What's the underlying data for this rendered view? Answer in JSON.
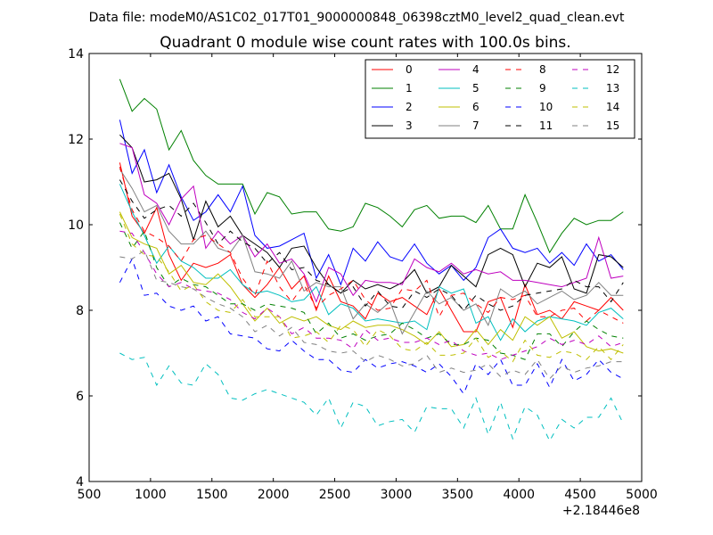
{
  "chart_data": {
    "type": "line",
    "suptitle": "Data file: modeM0/AS1C02_017T01_9000000848_06398cztM0_level2_quad_clean.evt",
    "title": "Quadrant 0 module wise count rates with 100.0s bins.",
    "xlabel": "",
    "ylabel": "",
    "x_offset_label": "+2.18446e8",
    "xlim": [
      500,
      5000
    ],
    "ylim": [
      4,
      14
    ],
    "xticks": [
      500,
      1000,
      1500,
      2000,
      2500,
      3000,
      3500,
      4000,
      4500,
      5000
    ],
    "xtick_labels": [
      "500",
      "1000",
      "1500",
      "2000",
      "2500",
      "3000",
      "3500",
      "4000",
      "4500",
      "5000"
    ],
    "yticks": [
      4,
      6,
      8,
      10,
      12,
      14
    ],
    "ytick_labels": [
      "4",
      "6",
      "8",
      "10",
      "12",
      "14"
    ],
    "legend_position": "top-right",
    "x": [
      750,
      850,
      950,
      1050,
      1150,
      1250,
      1350,
      1450,
      1550,
      1650,
      1750,
      1850,
      1950,
      2050,
      2150,
      2250,
      2350,
      2450,
      2550,
      2650,
      2750,
      2850,
      2950,
      3050,
      3150,
      3250,
      3350,
      3450,
      3550,
      3650,
      3750,
      3850,
      3950,
      4050,
      4150,
      4250,
      4350,
      4450,
      4550,
      4650,
      4750,
      4850
    ],
    "series": [
      {
        "name": "0",
        "color": "#ff0000",
        "dash": "solid",
        "values": [
          11.45,
          10.2,
          9.8,
          10.4,
          9.3,
          8.7,
          9.1,
          9.0,
          9.1,
          9.3,
          8.6,
          8.3,
          8.6,
          9.0,
          8.5,
          8.8,
          8.0,
          8.8,
          8.2,
          8.1,
          7.8,
          8.4,
          8.2,
          8.3,
          8.1,
          7.9,
          8.5,
          8.0,
          7.5,
          7.5,
          8.2,
          8.3,
          7.6,
          8.6,
          7.9,
          8.0,
          7.8,
          8.2,
          8.1,
          8.0,
          8.3,
          8.0
        ]
      },
      {
        "name": "1",
        "color": "#008000",
        "dash": "solid",
        "values": [
          13.4,
          12.65,
          12.95,
          12.7,
          11.75,
          12.2,
          11.5,
          11.15,
          10.95,
          10.95,
          10.95,
          10.25,
          10.75,
          10.65,
          10.25,
          10.3,
          10.3,
          9.9,
          9.85,
          9.95,
          10.5,
          10.4,
          10.2,
          9.95,
          10.35,
          10.45,
          10.15,
          10.2,
          10.2,
          10.05,
          10.45,
          9.9,
          9.9,
          10.7,
          10.05,
          9.35,
          9.8,
          10.15,
          10.0,
          10.1,
          10.1,
          10.3
        ]
      },
      {
        "name": "2",
        "color": "#0000ff",
        "dash": "solid",
        "values": [
          12.45,
          11.2,
          11.75,
          10.75,
          11.4,
          10.65,
          10.1,
          10.3,
          10.7,
          10.3,
          10.9,
          9.75,
          9.45,
          9.5,
          9.65,
          9.8,
          8.75,
          9.3,
          8.6,
          9.45,
          9.15,
          9.6,
          9.25,
          9.15,
          9.55,
          9.1,
          8.85,
          9.05,
          8.7,
          9.0,
          9.7,
          9.9,
          9.45,
          9.35,
          9.45,
          9.1,
          9.35,
          9.05,
          9.55,
          9.15,
          9.3,
          8.95
        ]
      },
      {
        "name": "3",
        "color": "#000000",
        "dash": "solid",
        "values": [
          12.1,
          11.8,
          11.0,
          11.05,
          11.2,
          10.6,
          9.65,
          10.55,
          9.95,
          10.2,
          9.75,
          9.55,
          9.35,
          9.0,
          9.45,
          9.5,
          9.0,
          8.6,
          8.4,
          8.7,
          8.5,
          8.6,
          8.5,
          8.65,
          8.95,
          8.4,
          8.55,
          9.05,
          8.8,
          8.55,
          9.3,
          9.45,
          9.3,
          8.55,
          9.1,
          9.0,
          9.25,
          8.5,
          8.4,
          9.3,
          9.25,
          9.0
        ]
      },
      {
        "name": "4",
        "color": "#bf00bf",
        "dash": "solid",
        "values": [
          11.9,
          11.8,
          10.7,
          10.5,
          10.0,
          10.6,
          10.9,
          9.45,
          9.85,
          9.55,
          9.75,
          9.25,
          9.55,
          9.1,
          9.2,
          8.85,
          8.2,
          9.0,
          8.85,
          8.35,
          8.7,
          8.65,
          8.65,
          8.6,
          9.2,
          9.0,
          8.9,
          9.1,
          8.85,
          8.95,
          8.85,
          8.9,
          8.7,
          8.7,
          8.65,
          8.6,
          8.55,
          8.65,
          8.75,
          9.7,
          8.75,
          8.8
        ]
      },
      {
        "name": "5",
        "color": "#00bfbf",
        "dash": "solid",
        "values": [
          10.95,
          10.3,
          9.75,
          9.1,
          9.5,
          9.15,
          9.0,
          8.75,
          8.75,
          8.95,
          8.6,
          8.4,
          8.45,
          8.35,
          8.2,
          8.25,
          8.55,
          7.9,
          8.15,
          8.05,
          7.75,
          7.8,
          7.75,
          7.7,
          7.75,
          7.55,
          8.55,
          8.4,
          8.5,
          7.7,
          7.85,
          7.3,
          7.8,
          7.5,
          7.75,
          7.85,
          7.8,
          7.75,
          7.65,
          7.95,
          8.05,
          7.8
        ]
      },
      {
        "name": "6",
        "color": "#bfbf00",
        "dash": "solid",
        "values": [
          10.3,
          9.7,
          9.55,
          9.45,
          8.85,
          9.05,
          8.65,
          8.6,
          8.85,
          8.55,
          8.15,
          7.75,
          8.05,
          7.7,
          7.85,
          7.75,
          7.85,
          7.65,
          7.55,
          7.75,
          7.6,
          7.65,
          7.65,
          7.55,
          7.4,
          7.2,
          7.5,
          7.15,
          7.2,
          7.55,
          7.2,
          7.55,
          7.3,
          7.85,
          7.65,
          7.85,
          7.35,
          7.5,
          7.15,
          7.05,
          7.1,
          7.0
        ]
      },
      {
        "name": "7",
        "color": "#808080",
        "dash": "solid",
        "values": [
          11.3,
          10.85,
          10.3,
          10.45,
          9.85,
          9.55,
          9.55,
          9.85,
          9.45,
          9.35,
          9.75,
          8.9,
          8.85,
          8.75,
          9.15,
          8.45,
          8.65,
          8.55,
          8.55,
          7.8,
          8.15,
          7.95,
          8.2,
          7.45,
          7.95,
          8.45,
          8.15,
          8.3,
          8.0,
          8.15,
          7.65,
          8.5,
          8.3,
          8.45,
          8.15,
          8.3,
          8.45,
          8.25,
          8.35,
          8.65,
          8.35,
          8.35
        ]
      },
      {
        "name": "8",
        "color": "#ff0000",
        "dash": "dashed",
        "values": [
          11.35,
          10.35,
          9.85,
          9.7,
          9.5,
          9.15,
          9.65,
          9.75,
          9.55,
          9.35,
          8.75,
          8.35,
          9.15,
          8.55,
          8.2,
          8.6,
          8.05,
          8.35,
          8.5,
          8.7,
          8.25,
          8.0,
          8.05,
          8.5,
          8.45,
          8.7,
          7.85,
          8.35,
          8.4,
          8.15,
          7.95,
          8.3,
          8.25,
          8.35,
          7.85,
          7.85,
          8.0,
          8.05,
          7.75,
          8.0,
          7.85,
          7.7
        ]
      },
      {
        "name": "9",
        "color": "#008000",
        "dash": "dashed",
        "values": [
          10.05,
          9.45,
          9.85,
          9.0,
          8.55,
          8.75,
          8.6,
          8.55,
          8.35,
          8.15,
          8.15,
          8.0,
          8.15,
          8.1,
          8.05,
          7.95,
          7.45,
          7.7,
          7.35,
          7.45,
          7.3,
          7.4,
          7.45,
          7.7,
          7.55,
          7.35,
          7.45,
          7.2,
          7.2,
          7.35,
          7.3,
          7.0,
          6.95,
          6.85,
          7.45,
          7.45,
          7.15,
          7.5,
          7.75,
          7.55,
          7.4,
          7.35
        ]
      },
      {
        "name": "10",
        "color": "#0000ff",
        "dash": "dashed",
        "values": [
          8.65,
          9.2,
          8.35,
          8.4,
          8.1,
          8.0,
          8.1,
          7.75,
          7.85,
          7.45,
          7.4,
          7.35,
          7.1,
          7.05,
          7.3,
          7.05,
          6.85,
          6.85,
          6.6,
          6.55,
          6.85,
          6.65,
          6.75,
          6.8,
          6.7,
          6.55,
          6.75,
          6.45,
          6.05,
          6.75,
          6.5,
          6.85,
          6.25,
          6.25,
          6.75,
          6.2,
          6.85,
          6.35,
          6.5,
          6.85,
          6.55,
          6.4
        ]
      },
      {
        "name": "11",
        "color": "#000000",
        "dash": "dashed",
        "values": [
          11.05,
          10.55,
          10.15,
          10.35,
          10.45,
          10.2,
          10.5,
          10.05,
          9.55,
          9.85,
          9.6,
          9.45,
          9.1,
          9.35,
          8.95,
          9.0,
          8.7,
          8.6,
          8.4,
          8.55,
          8.1,
          8.45,
          8.1,
          8.05,
          8.45,
          8.3,
          8.5,
          8.35,
          8.0,
          8.35,
          8.15,
          8.0,
          8.1,
          8.35,
          8.4,
          8.45,
          8.5,
          8.7,
          8.55,
          8.55,
          8.2,
          8.65
        ]
      },
      {
        "name": "12",
        "color": "#bf00bf",
        "dash": "dashed",
        "values": [
          9.85,
          9.8,
          9.35,
          8.85,
          8.55,
          8.65,
          8.5,
          8.45,
          8.4,
          8.25,
          7.95,
          7.8,
          8.05,
          7.85,
          7.45,
          7.6,
          7.35,
          7.35,
          7.3,
          7.1,
          7.55,
          7.3,
          7.35,
          7.25,
          7.25,
          7.35,
          7.2,
          7.3,
          7.05,
          6.95,
          7.0,
          6.85,
          6.95,
          7.05,
          7.15,
          7.35,
          7.2,
          7.3,
          7.2,
          7.4,
          7.15,
          7.25
        ]
      },
      {
        "name": "13",
        "color": "#00bfbf",
        "dash": "dashed",
        "values": [
          7.0,
          6.85,
          6.9,
          6.25,
          6.7,
          6.3,
          6.25,
          6.75,
          6.5,
          5.95,
          5.9,
          6.05,
          6.15,
          6.05,
          5.95,
          5.85,
          5.55,
          5.95,
          5.25,
          5.85,
          5.75,
          5.3,
          5.4,
          5.45,
          5.15,
          5.75,
          5.7,
          5.7,
          5.25,
          5.95,
          5.1,
          5.85,
          5.0,
          5.75,
          5.55,
          4.95,
          5.45,
          5.25,
          5.5,
          5.5,
          5.95,
          5.35
        ]
      },
      {
        "name": "14",
        "color": "#bfbf00",
        "dash": "dashed",
        "values": [
          10.25,
          9.55,
          9.3,
          9.25,
          8.9,
          8.45,
          8.6,
          8.2,
          8.0,
          7.95,
          8.25,
          7.85,
          7.85,
          7.85,
          7.35,
          7.4,
          7.5,
          7.25,
          7.65,
          7.55,
          7.15,
          7.55,
          7.4,
          7.1,
          7.05,
          7.25,
          6.95,
          6.95,
          7.0,
          7.35,
          6.9,
          7.05,
          6.8,
          7.3,
          6.95,
          6.9,
          7.05,
          7.0,
          6.85,
          7.15,
          6.85,
          7.2
        ]
      },
      {
        "name": "15",
        "color": "#808080",
        "dash": "dashed",
        "values": [
          9.25,
          9.2,
          9.4,
          8.7,
          8.65,
          8.55,
          8.5,
          8.3,
          8.15,
          8.05,
          7.85,
          7.5,
          7.65,
          7.4,
          7.6,
          7.25,
          7.2,
          7.05,
          7.0,
          7.05,
          6.8,
          6.95,
          6.85,
          6.7,
          6.75,
          6.95,
          6.55,
          6.65,
          6.55,
          6.6,
          6.75,
          6.45,
          6.6,
          6.5,
          6.85,
          6.4,
          6.7,
          6.55,
          6.65,
          6.7,
          6.8,
          6.8
        ]
      }
    ]
  }
}
